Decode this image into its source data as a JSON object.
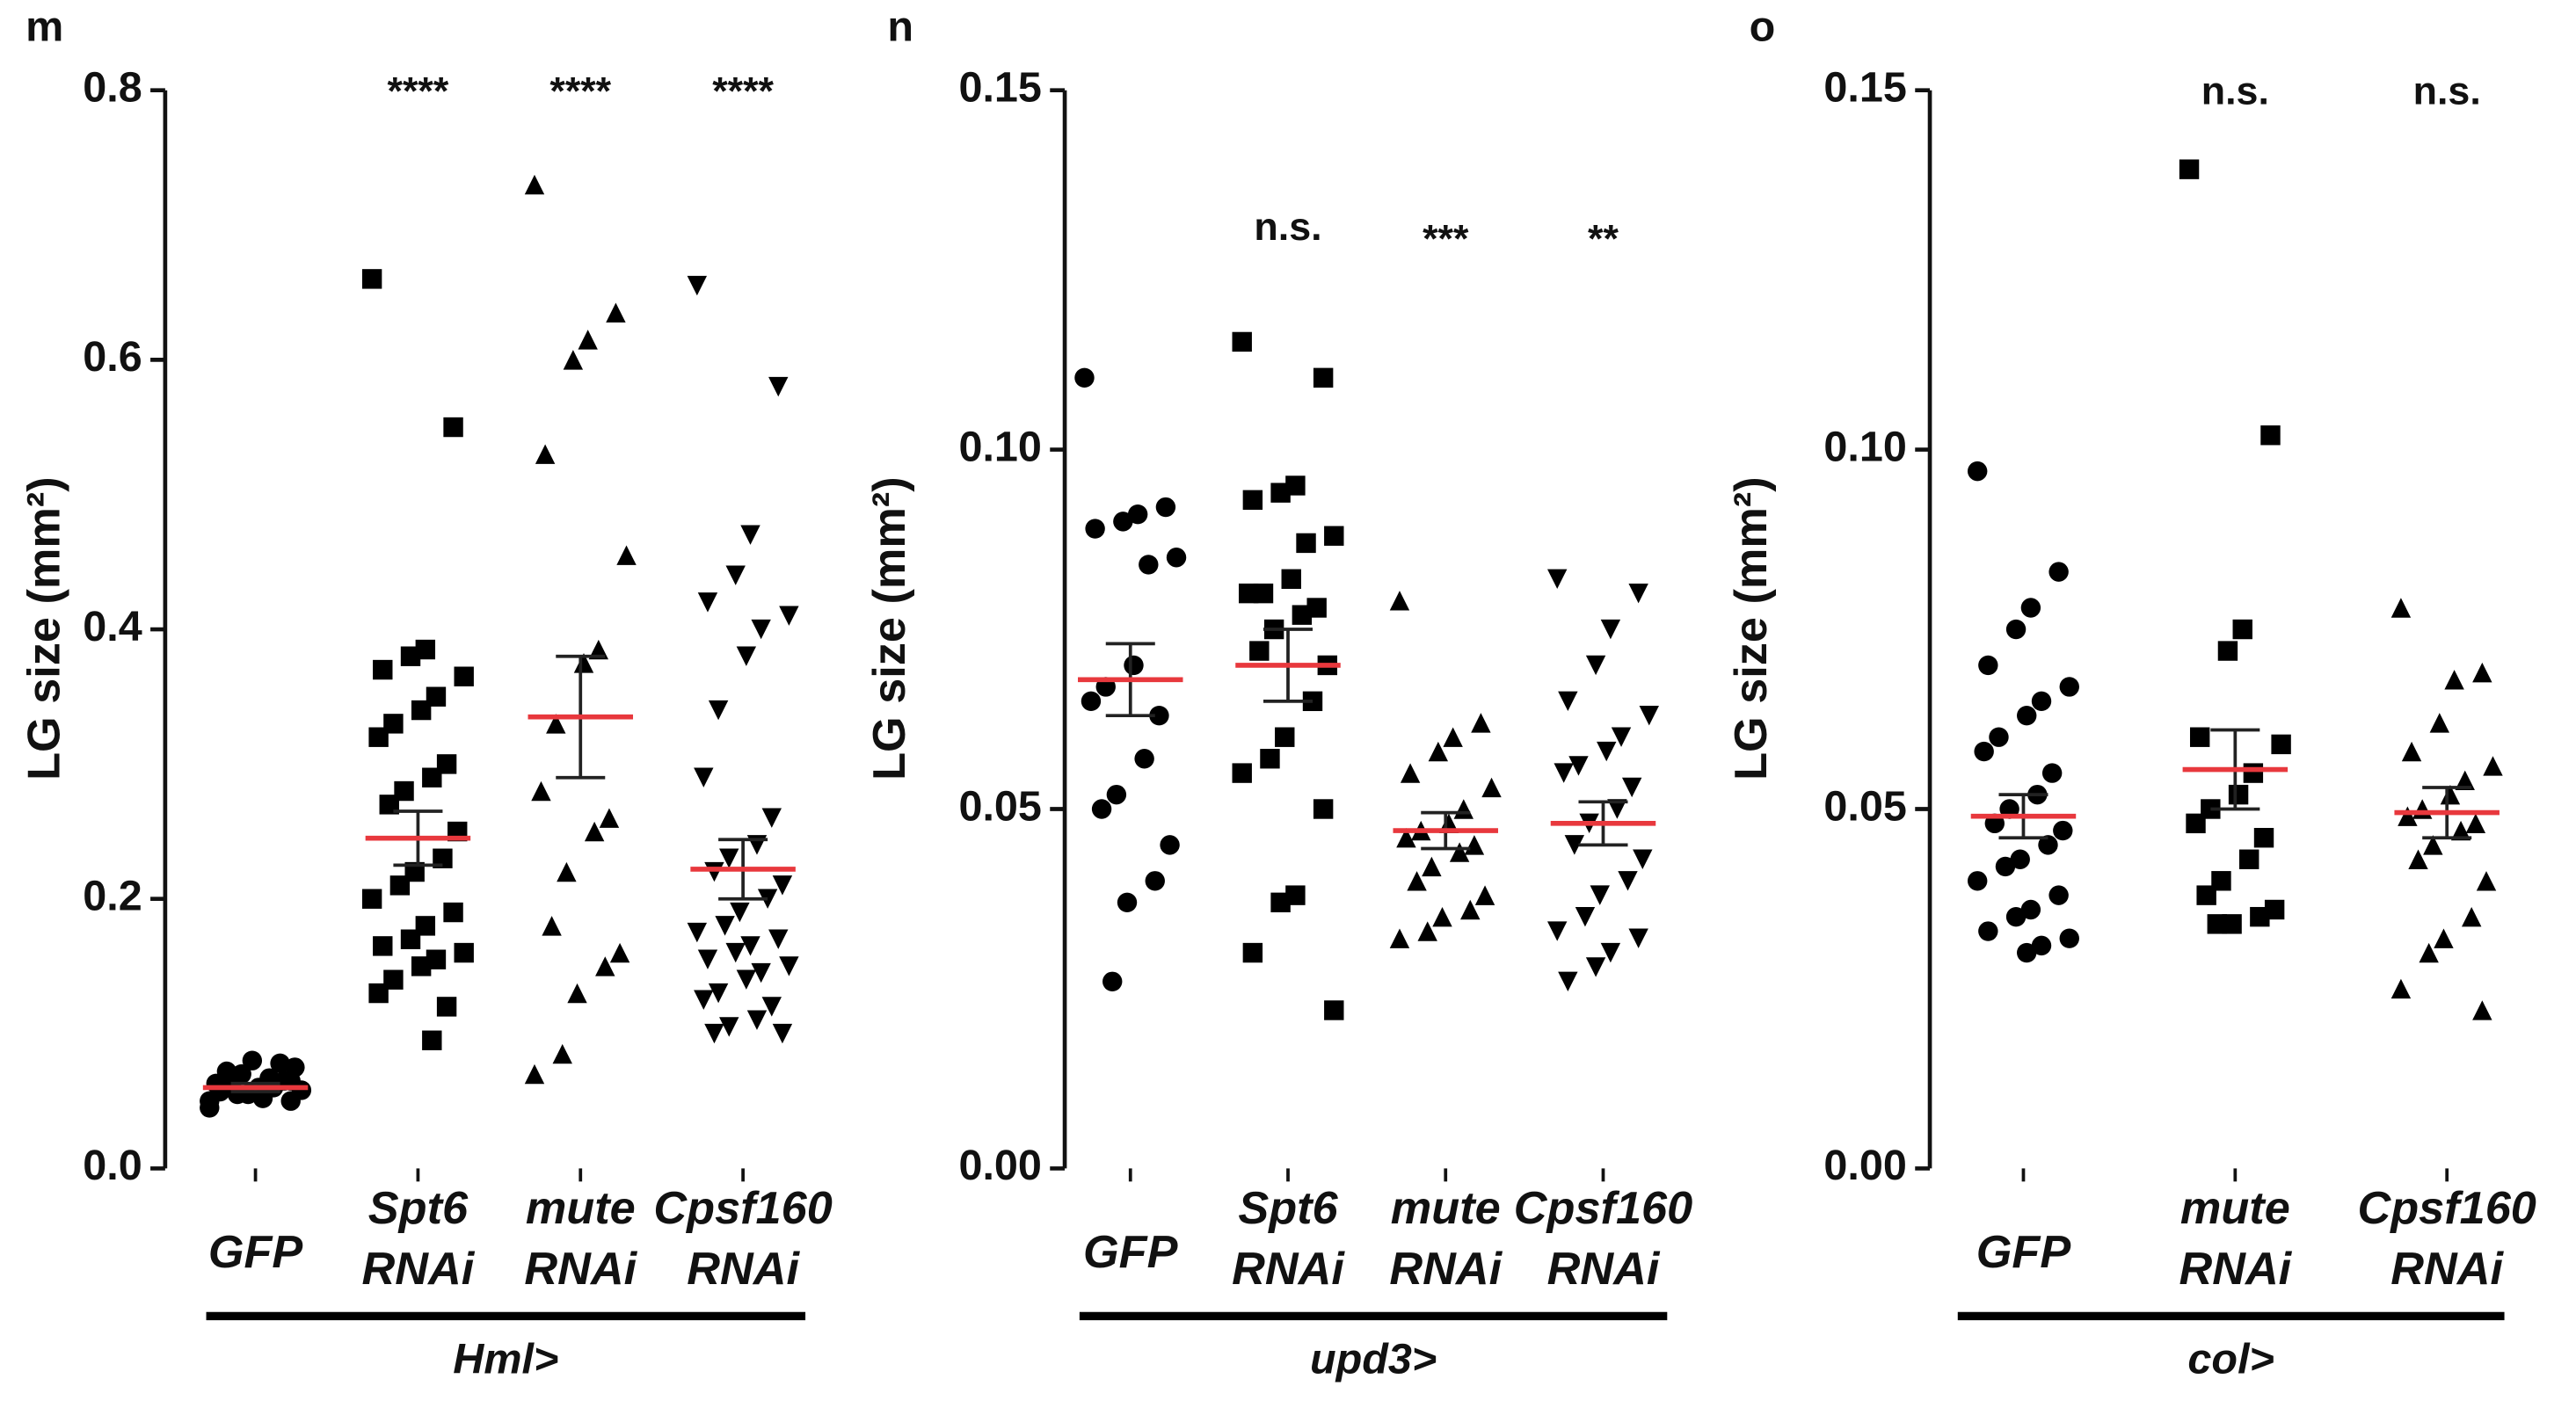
{
  "chart_data": [
    {
      "type": "dot",
      "panel": "m",
      "ylabel": "LG size (mm²)",
      "group_label": "Hml>",
      "categories": [
        "GFP",
        "Spt6 RNAi",
        "mute RNAi",
        "Cpsf160 RNAi"
      ],
      "markers": [
        "circle",
        "square",
        "triangle",
        "triangle-down"
      ],
      "significance": [
        null,
        "****",
        "****",
        "****"
      ],
      "values": [
        [
          0.045,
          0.05,
          0.052,
          0.055,
          0.057,
          0.058,
          0.06,
          0.06,
          0.062,
          0.063,
          0.065,
          0.067,
          0.07,
          0.072,
          0.075,
          0.078,
          0.08,
          0.055,
          0.05,
          0.065
        ],
        [
          0.66,
          0.55,
          0.385,
          0.38,
          0.37,
          0.365,
          0.35,
          0.34,
          0.33,
          0.32,
          0.3,
          0.29,
          0.28,
          0.27,
          0.25,
          0.23,
          0.22,
          0.21,
          0.2,
          0.19,
          0.18,
          0.17,
          0.165,
          0.16,
          0.155,
          0.15,
          0.14,
          0.13,
          0.12,
          0.095
        ],
        [
          0.73,
          0.635,
          0.615,
          0.6,
          0.53,
          0.455,
          0.385,
          0.375,
          0.33,
          0.28,
          0.26,
          0.25,
          0.22,
          0.18,
          0.16,
          0.15,
          0.13,
          0.085,
          0.07
        ],
        [
          0.655,
          0.58,
          0.47,
          0.44,
          0.42,
          0.41,
          0.4,
          0.38,
          0.34,
          0.29,
          0.26,
          0.24,
          0.23,
          0.22,
          0.21,
          0.2,
          0.19,
          0.18,
          0.175,
          0.17,
          0.165,
          0.16,
          0.155,
          0.15,
          0.145,
          0.14,
          0.13,
          0.125,
          0.12,
          0.11,
          0.105,
          0.1,
          0.1
        ]
      ],
      "means": [
        0.06,
        0.245,
        0.335,
        0.222
      ],
      "sem": [
        0.003,
        0.02,
        0.045,
        0.022
      ],
      "color": "#000000",
      "mean_color": "#e8383d",
      "ylim": [
        0,
        0.8
      ],
      "yticks": [
        {
          "value": 0,
          "label": "0.0"
        },
        0.2,
        0.4,
        0.6,
        0.8
      ]
    },
    {
      "type": "dot",
      "panel": "n",
      "ylabel": "LG size (mm²)",
      "group_label": "upd3>",
      "categories": [
        "GFP",
        "Spt6 RNAi",
        "mute RNAi",
        "Cpsf160 RNAi"
      ],
      "markers": [
        "circle",
        "square",
        "triangle",
        "triangle-down"
      ],
      "significance": [
        null,
        "n.s.",
        "***",
        "**"
      ],
      "values": [
        [
          0.11,
          0.092,
          0.091,
          0.09,
          0.089,
          0.085,
          0.084,
          0.07,
          0.067,
          0.065,
          0.063,
          0.057,
          0.052,
          0.05,
          0.045,
          0.04,
          0.037,
          0.026
        ],
        [
          0.115,
          0.11,
          0.095,
          0.094,
          0.093,
          0.088,
          0.087,
          0.082,
          0.08,
          0.08,
          0.078,
          0.077,
          0.075,
          0.072,
          0.07,
          0.065,
          0.06,
          0.057,
          0.055,
          0.05,
          0.038,
          0.037,
          0.03,
          0.022
        ],
        [
          0.079,
          0.062,
          0.06,
          0.058,
          0.055,
          0.053,
          0.05,
          0.048,
          0.047,
          0.046,
          0.045,
          0.044,
          0.042,
          0.04,
          0.038,
          0.036,
          0.035,
          0.033,
          0.032
        ],
        [
          0.082,
          0.08,
          0.075,
          0.07,
          0.065,
          0.063,
          0.06,
          0.058,
          0.056,
          0.055,
          0.053,
          0.05,
          0.048,
          0.045,
          0.043,
          0.04,
          0.038,
          0.035,
          0.033,
          0.032,
          0.03,
          0.028,
          0.026
        ]
      ],
      "means": [
        0.068,
        0.07,
        0.047,
        0.048
      ],
      "sem": [
        0.005,
        0.005,
        0.0025,
        0.003
      ],
      "color": "#000000",
      "mean_color": "#e8383d",
      "ylim": [
        0,
        0.15
      ],
      "yticks": [
        {
          "value": 0,
          "label": "0.00"
        },
        0.05,
        {
          "value": 0.1,
          "label": "0.10"
        },
        0.15
      ]
    },
    {
      "type": "dot",
      "panel": "o",
      "ylabel": "LG size (mm²)",
      "group_label": "col>",
      "categories": [
        "GFP",
        "mute RNAi",
        "Cpsf160 RNAi"
      ],
      "markers": [
        "circle",
        "square",
        "triangle"
      ],
      "significance": [
        null,
        "n.s.",
        "n.s."
      ],
      "values": [
        [
          0.097,
          0.083,
          0.078,
          0.075,
          0.07,
          0.067,
          0.065,
          0.063,
          0.06,
          0.058,
          0.055,
          0.052,
          0.05,
          0.048,
          0.047,
          0.045,
          0.043,
          0.042,
          0.04,
          0.038,
          0.036,
          0.035,
          0.033,
          0.032,
          0.031,
          0.03
        ],
        [
          0.139,
          0.102,
          0.075,
          0.072,
          0.06,
          0.059,
          0.055,
          0.052,
          0.05,
          0.048,
          0.046,
          0.043,
          0.04,
          0.038,
          0.036,
          0.035,
          0.034,
          0.034
        ],
        [
          0.078,
          0.069,
          0.068,
          0.062,
          0.058,
          0.056,
          0.054,
          0.052,
          0.05,
          0.049,
          0.048,
          0.047,
          0.045,
          0.043,
          0.04,
          0.035,
          0.032,
          0.03,
          0.025,
          0.022
        ]
      ],
      "means": [
        0.049,
        0.0555,
        0.0495
      ],
      "sem": [
        0.003,
        0.0055,
        0.0035
      ],
      "color": "#000000",
      "mean_color": "#e8383d",
      "ylim": [
        0,
        0.15
      ],
      "yticks": [
        {
          "value": 0,
          "label": "0.00"
        },
        0.05,
        {
          "value": 0.1,
          "label": "0.10"
        },
        0.15
      ]
    }
  ]
}
